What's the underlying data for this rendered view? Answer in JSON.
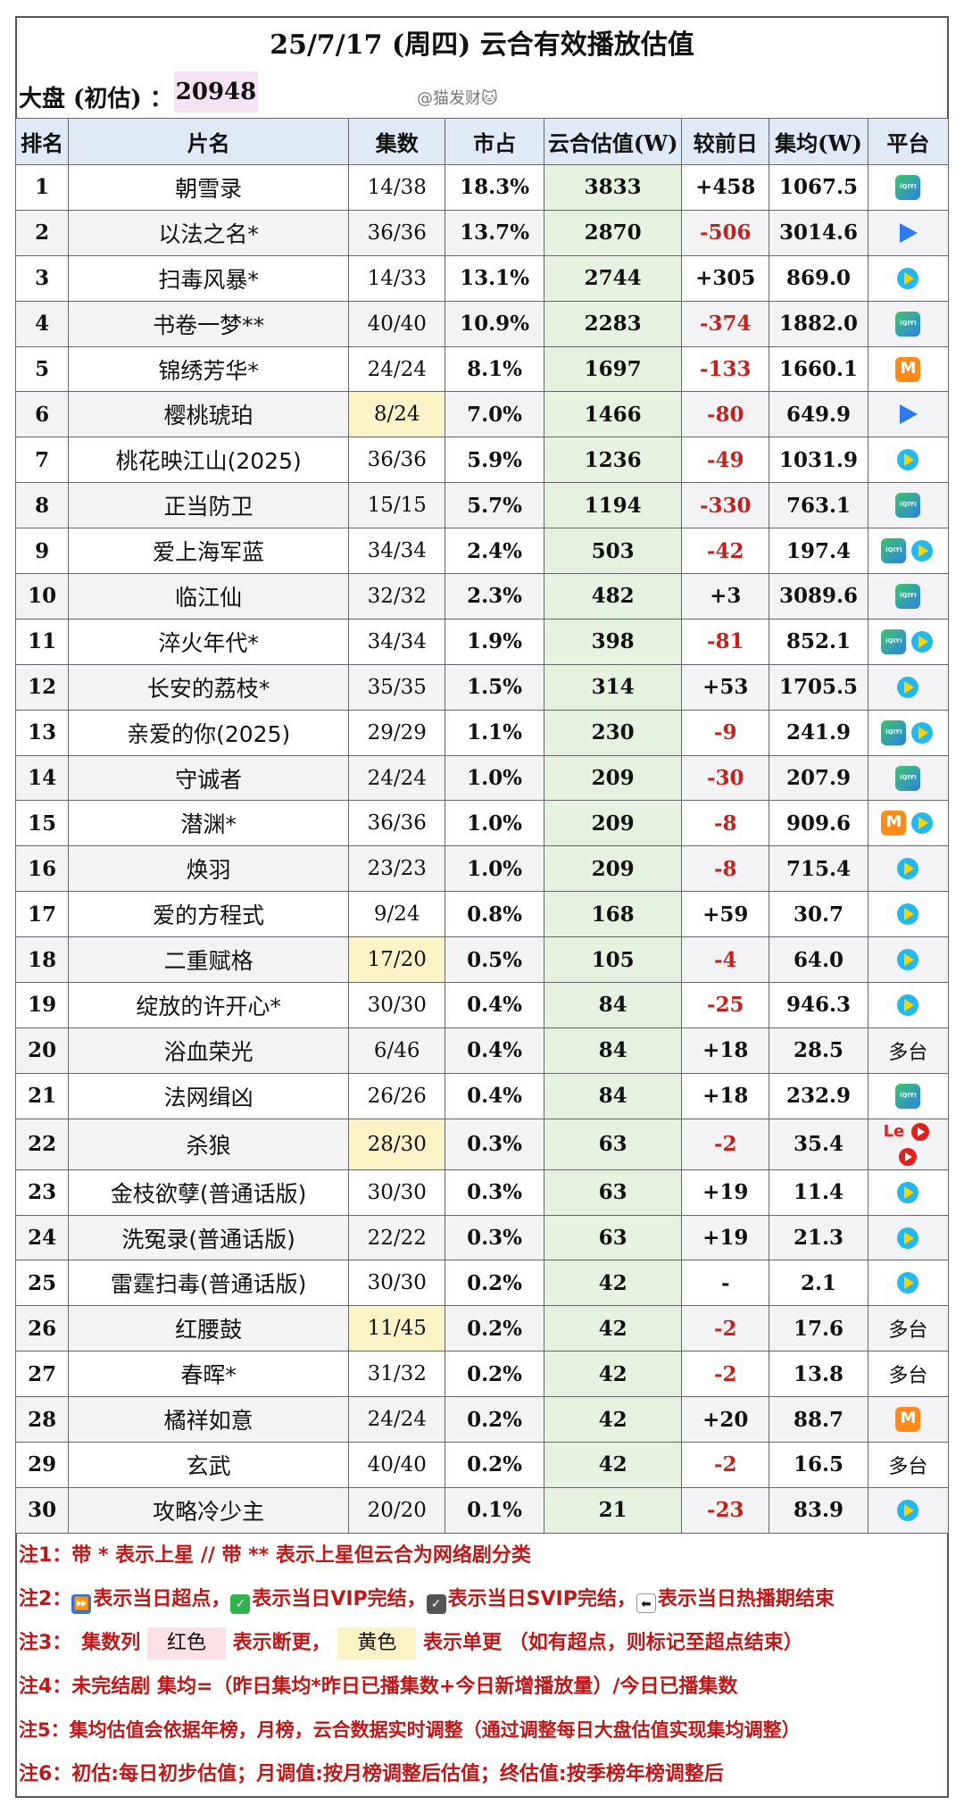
{
  "title": "25/7/17 (周四) 云合有效播放估值",
  "summary": {
    "label": "大盘 (初估) ：",
    "value": "20948",
    "watermark": "@猫发财🐱"
  },
  "headers": [
    "排名",
    "片名",
    "集数",
    "市占",
    "云合估值(W)",
    "较前日",
    "集均(W)",
    "平台"
  ],
  "rows": [
    {
      "rank": "1",
      "name": "朝雪录",
      "ep": "14/38",
      "share": "18.3%",
      "est": "3833",
      "chg": "+458",
      "avg": "1067.5",
      "plat": [
        "iqiyi"
      ],
      "ep_hl": ""
    },
    {
      "rank": "2",
      "name": "以法之名*",
      "ep": "36/36",
      "share": "13.7%",
      "est": "2870",
      "chg": "-506",
      "avg": "3014.6",
      "plat": [
        "youku"
      ],
      "ep_hl": ""
    },
    {
      "rank": "3",
      "name": "扫毒风暴*",
      "ep": "14/33",
      "share": "13.1%",
      "est": "2744",
      "chg": "+305",
      "avg": "869.0",
      "plat": [
        "tencent"
      ],
      "ep_hl": ""
    },
    {
      "rank": "4",
      "name": "书卷一梦**",
      "ep": "40/40",
      "share": "10.9%",
      "est": "2283",
      "chg": "-374",
      "avg": "1882.0",
      "plat": [
        "iqiyi"
      ],
      "ep_hl": ""
    },
    {
      "rank": "5",
      "name": "锦绣芳华*",
      "ep": "24/24",
      "share": "8.1%",
      "est": "1697",
      "chg": "-133",
      "avg": "1660.1",
      "plat": [
        "mgtv"
      ],
      "ep_hl": ""
    },
    {
      "rank": "6",
      "name": "樱桃琥珀",
      "ep": "8/24",
      "share": "7.0%",
      "est": "1466",
      "chg": "-80",
      "avg": "649.9",
      "plat": [
        "youku"
      ],
      "ep_hl": "yellow"
    },
    {
      "rank": "7",
      "name": "桃花映江山(2025)",
      "ep": "36/36",
      "share": "5.9%",
      "est": "1236",
      "chg": "-49",
      "avg": "1031.9",
      "plat": [
        "tencent"
      ],
      "ep_hl": ""
    },
    {
      "rank": "8",
      "name": "正当防卫",
      "ep": "15/15",
      "share": "5.7%",
      "est": "1194",
      "chg": "-330",
      "avg": "763.1",
      "plat": [
        "iqiyi"
      ],
      "ep_hl": ""
    },
    {
      "rank": "9",
      "name": "爱上海军蓝",
      "ep": "34/34",
      "share": "2.4%",
      "est": "503",
      "chg": "-42",
      "avg": "197.4",
      "plat": [
        "iqiyi",
        "tencent"
      ],
      "ep_hl": ""
    },
    {
      "rank": "10",
      "name": "临江仙",
      "ep": "32/32",
      "share": "2.3%",
      "est": "482",
      "chg": "+3",
      "avg": "3089.6",
      "plat": [
        "iqiyi"
      ],
      "ep_hl": ""
    },
    {
      "rank": "11",
      "name": "淬火年代*",
      "ep": "34/34",
      "share": "1.9%",
      "est": "398",
      "chg": "-81",
      "avg": "852.1",
      "plat": [
        "iqiyi",
        "tencent"
      ],
      "ep_hl": ""
    },
    {
      "rank": "12",
      "name": "长安的荔枝*",
      "ep": "35/35",
      "share": "1.5%",
      "est": "314",
      "chg": "+53",
      "avg": "1705.5",
      "plat": [
        "tencent"
      ],
      "ep_hl": ""
    },
    {
      "rank": "13",
      "name": "亲爱的你(2025)",
      "ep": "29/29",
      "share": "1.1%",
      "est": "230",
      "chg": "-9",
      "avg": "241.9",
      "plat": [
        "iqiyi",
        "tencent"
      ],
      "ep_hl": ""
    },
    {
      "rank": "14",
      "name": "守诚者",
      "ep": "24/24",
      "share": "1.0%",
      "est": "209",
      "chg": "-30",
      "avg": "207.9",
      "plat": [
        "iqiyi"
      ],
      "ep_hl": ""
    },
    {
      "rank": "15",
      "name": "潜渊*",
      "ep": "36/36",
      "share": "1.0%",
      "est": "209",
      "chg": "-8",
      "avg": "909.6",
      "plat": [
        "mgtv",
        "tencent"
      ],
      "ep_hl": ""
    },
    {
      "rank": "16",
      "name": "焕羽",
      "ep": "23/23",
      "share": "1.0%",
      "est": "209",
      "chg": "-8",
      "avg": "715.4",
      "plat": [
        "tencent"
      ],
      "ep_hl": ""
    },
    {
      "rank": "17",
      "name": "爱的方程式",
      "ep": "9/24",
      "share": "0.8%",
      "est": "168",
      "chg": "+59",
      "avg": "30.7",
      "plat": [
        "tencent"
      ],
      "ep_hl": ""
    },
    {
      "rank": "18",
      "name": "二重赋格",
      "ep": "17/20",
      "share": "0.5%",
      "est": "105",
      "chg": "-4",
      "avg": "64.0",
      "plat": [
        "tencent"
      ],
      "ep_hl": "yellow"
    },
    {
      "rank": "19",
      "name": "绽放的许开心*",
      "ep": "30/30",
      "share": "0.4%",
      "est": "84",
      "chg": "-25",
      "avg": "946.3",
      "plat": [
        "tencent"
      ],
      "ep_hl": ""
    },
    {
      "rank": "20",
      "name": "浴血荣光",
      "ep": "6/46",
      "share": "0.4%",
      "est": "84",
      "chg": "+18",
      "avg": "28.5",
      "plat": [
        "多台"
      ],
      "ep_hl": ""
    },
    {
      "rank": "21",
      "name": "法网缉凶",
      "ep": "26/26",
      "share": "0.4%",
      "est": "84",
      "chg": "+18",
      "avg": "232.9",
      "plat": [
        "iqiyi"
      ],
      "ep_hl": ""
    },
    {
      "rank": "22",
      "name": "杀狼",
      "ep": "28/30",
      "share": "0.3%",
      "est": "63",
      "chg": "-2",
      "avg": "35.4",
      "plat": [
        "le",
        "red",
        "red"
      ],
      "ep_hl": "yellow"
    },
    {
      "rank": "23",
      "name": "金枝欲孽(普通话版)",
      "ep": "30/30",
      "share": "0.3%",
      "est": "63",
      "chg": "+19",
      "avg": "11.4",
      "plat": [
        "tencent"
      ],
      "ep_hl": ""
    },
    {
      "rank": "24",
      "name": "洗冤录(普通话版)",
      "ep": "22/22",
      "share": "0.3%",
      "est": "63",
      "chg": "+19",
      "avg": "21.3",
      "plat": [
        "tencent"
      ],
      "ep_hl": ""
    },
    {
      "rank": "25",
      "name": "雷霆扫毒(普通话版)",
      "ep": "30/30",
      "share": "0.2%",
      "est": "42",
      "chg": "-",
      "avg": "2.1",
      "plat": [
        "tencent"
      ],
      "ep_hl": ""
    },
    {
      "rank": "26",
      "name": "红腰鼓",
      "ep": "11/45",
      "share": "0.2%",
      "est": "42",
      "chg": "-2",
      "avg": "17.6",
      "plat": [
        "多台"
      ],
      "ep_hl": "yellow"
    },
    {
      "rank": "27",
      "name": "春晖*",
      "ep": "31/32",
      "share": "0.2%",
      "est": "42",
      "chg": "-2",
      "avg": "13.8",
      "plat": [
        "多台"
      ],
      "ep_hl": ""
    },
    {
      "rank": "28",
      "name": "橘祥如意",
      "ep": "24/24",
      "share": "0.2%",
      "est": "42",
      "chg": "+20",
      "avg": "88.7",
      "plat": [
        "mgtv"
      ],
      "ep_hl": ""
    },
    {
      "rank": "29",
      "name": "玄武",
      "ep": "40/40",
      "share": "0.2%",
      "est": "42",
      "chg": "-2",
      "avg": "16.5",
      "plat": [
        "多台"
      ],
      "ep_hl": ""
    },
    {
      "rank": "30",
      "name": "攻略冷少主",
      "ep": "20/20",
      "share": "0.1%",
      "est": "21",
      "chg": "-23",
      "avg": "83.9",
      "plat": [
        "tencent"
      ],
      "ep_hl": ""
    }
  ],
  "notes": {
    "n1": "注1：带 * 表示上星 // 带 ** 表示上星但云合为网络剧分类",
    "n2_prefix": "注2：",
    "n2_a": "表示当日超点，",
    "n2_b": "表示当日VIP完结，",
    "n2_c": "表示当日SVIP完结，",
    "n2_d": "表示当日热播期结束",
    "n3_a": "注3：　集数列",
    "n3_red": "红色",
    "n3_b": "表示断更，",
    "n3_yellow": "黄色",
    "n3_c": "表示单更 （如有超点，则标记至超点结束）",
    "n4": "注4：未完结剧 集均=（昨日集均*昨日已播集数+今日新增播放量）/今日已播集数",
    "n5": "注5：集均估值会依据年榜，月榜，云合数据实时调整（通过调整每日大盘估值实现集均调整）",
    "n6": "注6：初估:每日初步估值；月调值:按月榜调整后估值；终估值:按季榜年榜调整后"
  },
  "colors": {
    "header_bg": "#dfeaf6",
    "estimate_bg": "#e6f2e0",
    "negative": "#c8201a",
    "note_red": "#c01818",
    "highlight_yellow": "#fbf3c6",
    "highlight_pink": "#fde0e6"
  }
}
